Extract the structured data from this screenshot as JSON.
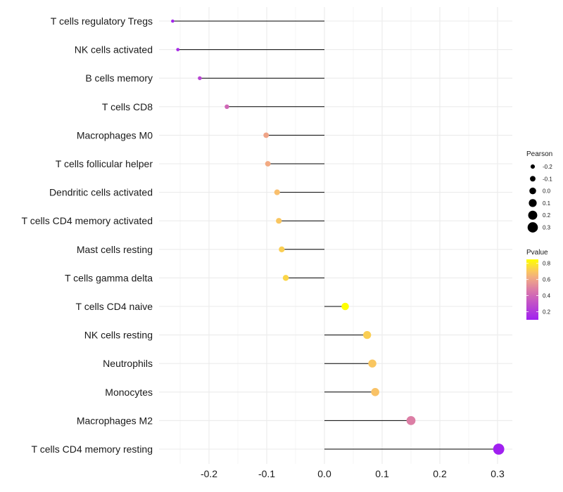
{
  "chart_data": {
    "type": "lollipop",
    "title": "",
    "xlabel": "",
    "ylabel": "",
    "xlim": [
      -0.27,
      0.31
    ],
    "xticks": [
      -0.2,
      -0.1,
      0.0,
      0.1,
      0.2,
      0.3
    ],
    "xtick_labels": [
      "-0.2",
      "-0.1",
      "0.0",
      "0.1",
      "0.2",
      "0.3"
    ],
    "grid": true,
    "categories": [
      "T cells regulatory  Tregs",
      "NK cells activated",
      "B cells memory",
      "T cells CD8",
      "Macrophages M0",
      "T cells follicular helper",
      "Dendritic cells activated",
      "T cells CD4 memory activated",
      "Mast cells resting",
      "T cells gamma delta",
      "T cells CD4 naive",
      "NK cells resting",
      "Neutrophils",
      "Monocytes",
      "Macrophages M2",
      "T cells CD4 memory resting"
    ],
    "pearson": [
      -0.263,
      -0.254,
      -0.216,
      -0.169,
      -0.101,
      -0.098,
      -0.082,
      -0.079,
      -0.074,
      -0.067,
      0.036,
      0.074,
      0.083,
      0.088,
      0.15,
      0.302
    ],
    "pvalue": [
      0.12,
      0.15,
      0.25,
      0.4,
      0.6,
      0.62,
      0.68,
      0.7,
      0.72,
      0.74,
      0.85,
      0.72,
      0.7,
      0.69,
      0.48,
      0.1
    ],
    "size_legend": {
      "title": "Pearson",
      "values": [
        -0.2,
        -0.1,
        0.0,
        0.1,
        0.2,
        0.3
      ],
      "labels": [
        "-0.2",
        "-0.1",
        "0.0",
        "0.1",
        "0.2",
        "0.3"
      ],
      "position": "right"
    },
    "color_legend": {
      "title": "Pvalue",
      "ticks": [
        0.8,
        0.6,
        0.4,
        0.2
      ],
      "labels": [
        "0.8",
        "0.6",
        "0.4",
        "0.2"
      ],
      "range": [
        0.1,
        0.85
      ],
      "low_color": "#a020f0",
      "high_color": "#ffff00",
      "position": "right"
    },
    "segment_color": "#000000",
    "grid_color": "#ebebeb"
  }
}
